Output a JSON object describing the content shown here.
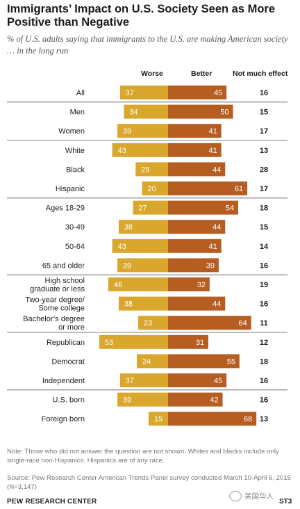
{
  "title": "Immigrants’ Impact on U.S. Society Seen as More Positive than Negative",
  "subtitle": "% of U.S. adults saying that immigrants to the U.S. are making American society … in the long run",
  "columns": {
    "worse": "Worse",
    "better": "Better",
    "no_effect": "Not much effect"
  },
  "colors": {
    "worse": "#d9a72e",
    "better": "#b65e22",
    "divider": "#555555",
    "label_text": "#ffffff"
  },
  "chart_data": {
    "type": "bar",
    "categories": [
      "All",
      "Men",
      "Women",
      "White",
      "Black",
      "Hispanic",
      "Ages 18-29",
      "30-49",
      "50-64",
      "65 and older",
      "High school graduate or less",
      "Two-year degree/ Some college",
      "Bachelor’s degree or more",
      "Republican",
      "Democrat",
      "Independent",
      "U.S. born",
      "Foreign born"
    ],
    "category_lines": [
      [
        "All"
      ],
      [
        "Men"
      ],
      [
        "Women"
      ],
      [
        "White"
      ],
      [
        "Black"
      ],
      [
        "Hispanic"
      ],
      [
        "Ages 18-29"
      ],
      [
        "30-49"
      ],
      [
        "50-64"
      ],
      [
        "65 and older"
      ],
      [
        "High school",
        "graduate or less"
      ],
      [
        "Two-year degree/",
        "Some college"
      ],
      [
        "Bachelor’s degree",
        "or more"
      ],
      [
        "Republican"
      ],
      [
        "Democrat"
      ],
      [
        "Independent"
      ],
      [
        "U.S. born"
      ],
      [
        "Foreign born"
      ]
    ],
    "series": [
      {
        "name": "Worse",
        "values": [
          37,
          34,
          39,
          43,
          25,
          20,
          27,
          38,
          43,
          39,
          46,
          38,
          23,
          53,
          24,
          37,
          39,
          15
        ]
      },
      {
        "name": "Better",
        "values": [
          45,
          50,
          41,
          41,
          44,
          61,
          54,
          44,
          41,
          39,
          32,
          44,
          64,
          31,
          55,
          45,
          42,
          68
        ]
      },
      {
        "name": "Not much effect",
        "values": [
          16,
          15,
          17,
          13,
          28,
          17,
          18,
          15,
          14,
          16,
          19,
          16,
          11,
          12,
          18,
          16,
          16,
          13
        ]
      }
    ],
    "group_breaks_after": [
      "All",
      "Women",
      "Hispanic",
      "65 and older",
      "Bachelor’s degree or more",
      "Independent"
    ]
  },
  "note": "Note: Those who did not answer the question are not shown. Whites and blacks include only single-race non-Hispanics. Hispanics are of any race.",
  "source": "Source: Pew Research Center American Trends Panel survey conducted March 10-April 6, 2015 (N=3,147)",
  "brand": "PEW RESEARCH CENTER",
  "watermark": "美国华人",
  "figure_code": "ST3"
}
